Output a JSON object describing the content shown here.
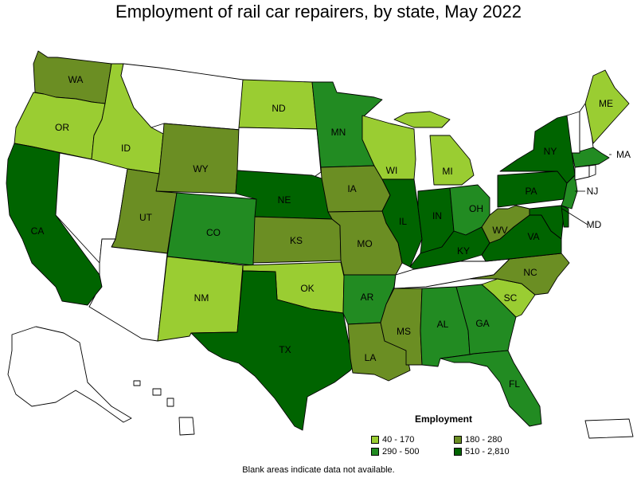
{
  "title": "Employment of rail car repairers, by state, May 2022",
  "legend": {
    "title": "Employment",
    "items": [
      {
        "label": "40 - 170",
        "color": "#9acd32"
      },
      {
        "label": "180 - 280",
        "color": "#6b8e23"
      },
      {
        "label": "290 - 500",
        "color": "#228b22"
      },
      {
        "label": "510 - 2,810",
        "color": "#006400"
      }
    ]
  },
  "note": "Blank areas indicate data not available.",
  "colors": {
    "no_data": "#ffffff",
    "border": "#000000"
  },
  "states": [
    {
      "abbr": "WA",
      "label": "WA",
      "class": "180 - 280"
    },
    {
      "abbr": "OR",
      "label": "OR",
      "class": "40 - 170"
    },
    {
      "abbr": "CA",
      "label": "CA",
      "class": "510 - 2,810"
    },
    {
      "abbr": "ID",
      "label": "ID",
      "class": "40 - 170"
    },
    {
      "abbr": "NV",
      "label": "",
      "class": "no data"
    },
    {
      "abbr": "MT",
      "label": "",
      "class": "no data"
    },
    {
      "abbr": "WY",
      "label": "WY",
      "class": "180 - 280"
    },
    {
      "abbr": "UT",
      "label": "UT",
      "class": "180 - 280"
    },
    {
      "abbr": "AZ",
      "label": "",
      "class": "no data"
    },
    {
      "abbr": "CO",
      "label": "CO",
      "class": "290 - 500"
    },
    {
      "abbr": "NM",
      "label": "NM",
      "class": "40 - 170"
    },
    {
      "abbr": "ND",
      "label": "ND",
      "class": "40 - 170"
    },
    {
      "abbr": "SD",
      "label": "",
      "class": "no data"
    },
    {
      "abbr": "NE",
      "label": "NE",
      "class": "510 - 2,810"
    },
    {
      "abbr": "KS",
      "label": "KS",
      "class": "180 - 280"
    },
    {
      "abbr": "OK",
      "label": "OK",
      "class": "40 - 170"
    },
    {
      "abbr": "TX",
      "label": "TX",
      "class": "510 - 2,810"
    },
    {
      "abbr": "MN",
      "label": "MN",
      "class": "290 - 500"
    },
    {
      "abbr": "IA",
      "label": "IA",
      "class": "180 - 280"
    },
    {
      "abbr": "MO",
      "label": "MO",
      "class": "180 - 280"
    },
    {
      "abbr": "AR",
      "label": "AR",
      "class": "290 - 500"
    },
    {
      "abbr": "LA",
      "label": "LA",
      "class": "180 - 280"
    },
    {
      "abbr": "WI",
      "label": "WI",
      "class": "40 - 170"
    },
    {
      "abbr": "IL",
      "label": "IL",
      "class": "510 - 2,810"
    },
    {
      "abbr": "MI",
      "label": "MI",
      "class": "40 - 170"
    },
    {
      "abbr": "IN",
      "label": "IN",
      "class": "510 - 2,810"
    },
    {
      "abbr": "OH",
      "label": "OH",
      "class": "290 - 500"
    },
    {
      "abbr": "KY",
      "label": "KY",
      "class": "510 - 2,810"
    },
    {
      "abbr": "TN",
      "label": "",
      "class": "no data"
    },
    {
      "abbr": "MS",
      "label": "MS",
      "class": "180 - 280"
    },
    {
      "abbr": "AL",
      "label": "AL",
      "class": "290 - 500"
    },
    {
      "abbr": "GA",
      "label": "GA",
      "class": "290 - 500"
    },
    {
      "abbr": "FL",
      "label": "FL",
      "class": "290 - 500"
    },
    {
      "abbr": "SC",
      "label": "SC",
      "class": "40 - 170"
    },
    {
      "abbr": "NC",
      "label": "NC",
      "class": "180 - 280"
    },
    {
      "abbr": "VA",
      "label": "VA",
      "class": "510 - 2,810"
    },
    {
      "abbr": "WV",
      "label": "WV",
      "class": "180 - 280"
    },
    {
      "abbr": "PA",
      "label": "PA",
      "class": "510 - 2,810"
    },
    {
      "abbr": "NY",
      "label": "NY",
      "class": "510 - 2,810"
    },
    {
      "abbr": "NJ",
      "label": "NJ",
      "class": "290 - 500"
    },
    {
      "abbr": "MD",
      "label": "MD",
      "class": "510 - 2,810"
    },
    {
      "abbr": "DE",
      "label": "",
      "class": "510 - 2,810"
    },
    {
      "abbr": "MA",
      "label": "MA",
      "class": "290 - 500"
    },
    {
      "abbr": "VT",
      "label": "",
      "class": "no data"
    },
    {
      "abbr": "NH",
      "label": "",
      "class": "no data"
    },
    {
      "abbr": "ME",
      "label": "ME",
      "class": "40 - 170"
    },
    {
      "abbr": "CT",
      "label": "",
      "class": "no data"
    },
    {
      "abbr": "RI",
      "label": "",
      "class": "no data"
    },
    {
      "abbr": "AK",
      "label": "",
      "class": "no data"
    },
    {
      "abbr": "HI",
      "label": "",
      "class": "no data"
    },
    {
      "abbr": "PR",
      "label": "",
      "class": "no data"
    }
  ]
}
